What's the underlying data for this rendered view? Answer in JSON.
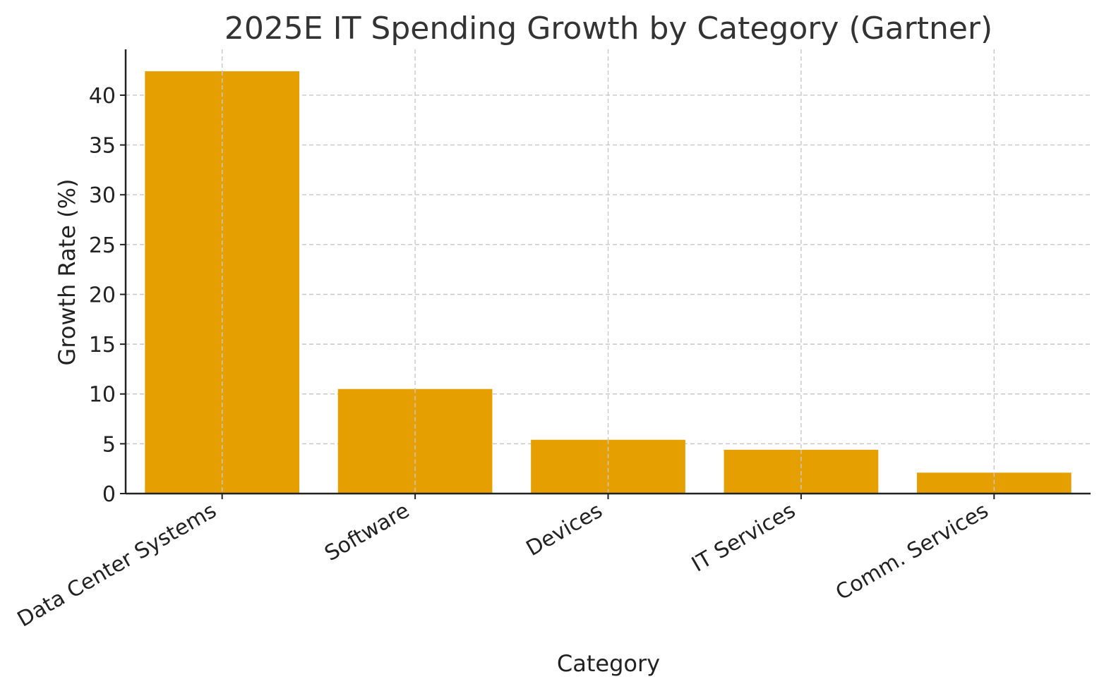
{
  "chart_data": {
    "type": "bar",
    "title": "2025E IT Spending Growth by Category (Gartner)",
    "xlabel": "Category",
    "ylabel": "Growth Rate (%)",
    "categories": [
      "Data Center Systems",
      "Software",
      "Devices",
      "IT Services",
      "Comm. Services"
    ],
    "values": [
      42.4,
      10.5,
      5.4,
      4.4,
      2.1
    ],
    "ylim": [
      0,
      44.6
    ],
    "yticks": [
      0,
      5,
      10,
      15,
      20,
      25,
      30,
      35,
      40
    ],
    "ytick_labels": [
      "0",
      "5",
      "10",
      "15",
      "20",
      "25",
      "30",
      "35",
      "40"
    ],
    "grid": true,
    "bar_color": "#E69F00"
  }
}
